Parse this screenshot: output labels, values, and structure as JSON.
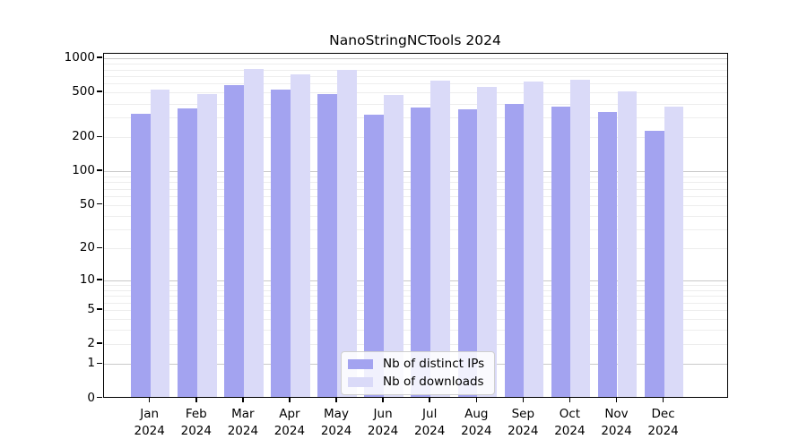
{
  "title": "NanoStringNCTools 2024",
  "colors": {
    "distinct_ips": "#a3a3f0",
    "downloads": "#dadaf8",
    "grid_major": "#c9c9c9",
    "grid_minor": "#ededed",
    "axis": "#000000",
    "background": "#ffffff"
  },
  "legend": {
    "items": [
      {
        "label": "Nb of distinct IPs",
        "color_key": "distinct_ips"
      },
      {
        "label": "Nb of downloads",
        "color_key": "downloads"
      }
    ]
  },
  "chart_data": {
    "type": "bar",
    "title": "NanoStringNCTools 2024",
    "categories": [
      "Jan",
      "Feb",
      "Mar",
      "Apr",
      "May",
      "Jun",
      "Jul",
      "Aug",
      "Sep",
      "Oct",
      "Nov",
      "Dec"
    ],
    "x_year": "2024",
    "yscale": "log10(v+1)",
    "ylim": [
      0,
      1000
    ],
    "yticks": [
      1000,
      500,
      200,
      100,
      50,
      20,
      10,
      5,
      2,
      1,
      0
    ],
    "grid": "on",
    "legend_position": "bottom-center",
    "series": [
      {
        "name": "Nb of distinct IPs",
        "values": [
          315,
          350,
          560,
          510,
          470,
          305,
          355,
          345,
          385,
          360,
          325,
          220
        ]
      },
      {
        "name": "Nb of downloads",
        "values": [
          510,
          470,
          780,
          700,
          770,
          460,
          620,
          540,
          605,
          625,
          495,
          360
        ]
      }
    ]
  }
}
